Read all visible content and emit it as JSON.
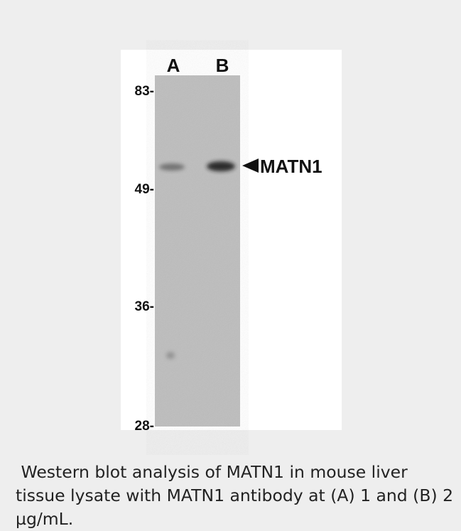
{
  "figure": {
    "lanes": [
      "A",
      "B"
    ],
    "markers": [
      "83-",
      "49-",
      "36-",
      "28-"
    ],
    "band_label": "MATN1"
  },
  "caption": " Western blot analysis of MATN1 in mouse liver tissue lysate with MATN1 antibody at (A) 1 and (B) 2 µg/mL."
}
